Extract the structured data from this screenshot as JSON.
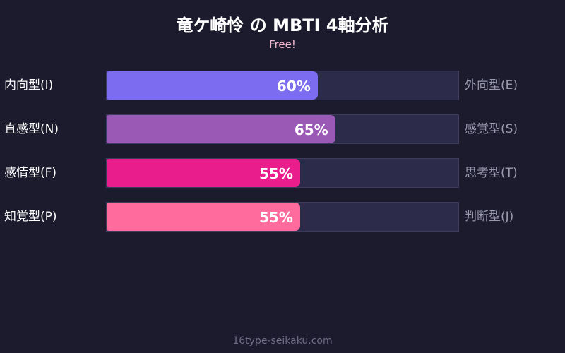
{
  "chart_data": {
    "type": "bar",
    "title": "竜ケ崎怜 の MBTI 4軸分析",
    "subtitle": "Free!",
    "xlim": [
      0,
      100
    ],
    "bars": [
      {
        "left_label": "内向型(I)",
        "right_label": "外向型(E)",
        "value": 60,
        "value_label": "60%",
        "color": "#7b6cf0"
      },
      {
        "left_label": "直感型(N)",
        "right_label": "感覚型(S)",
        "value": 65,
        "value_label": "65%",
        "color": "#9b59b6"
      },
      {
        "left_label": "感情型(F)",
        "right_label": "思考型(T)",
        "value": 55,
        "value_label": "55%",
        "color": "#e91e8c"
      },
      {
        "left_label": "知覚型(P)",
        "right_label": "判断型(J)",
        "value": 55,
        "value_label": "55%",
        "color": "#ff6b9d"
      }
    ]
  },
  "footer": "16type-seikaku.com"
}
